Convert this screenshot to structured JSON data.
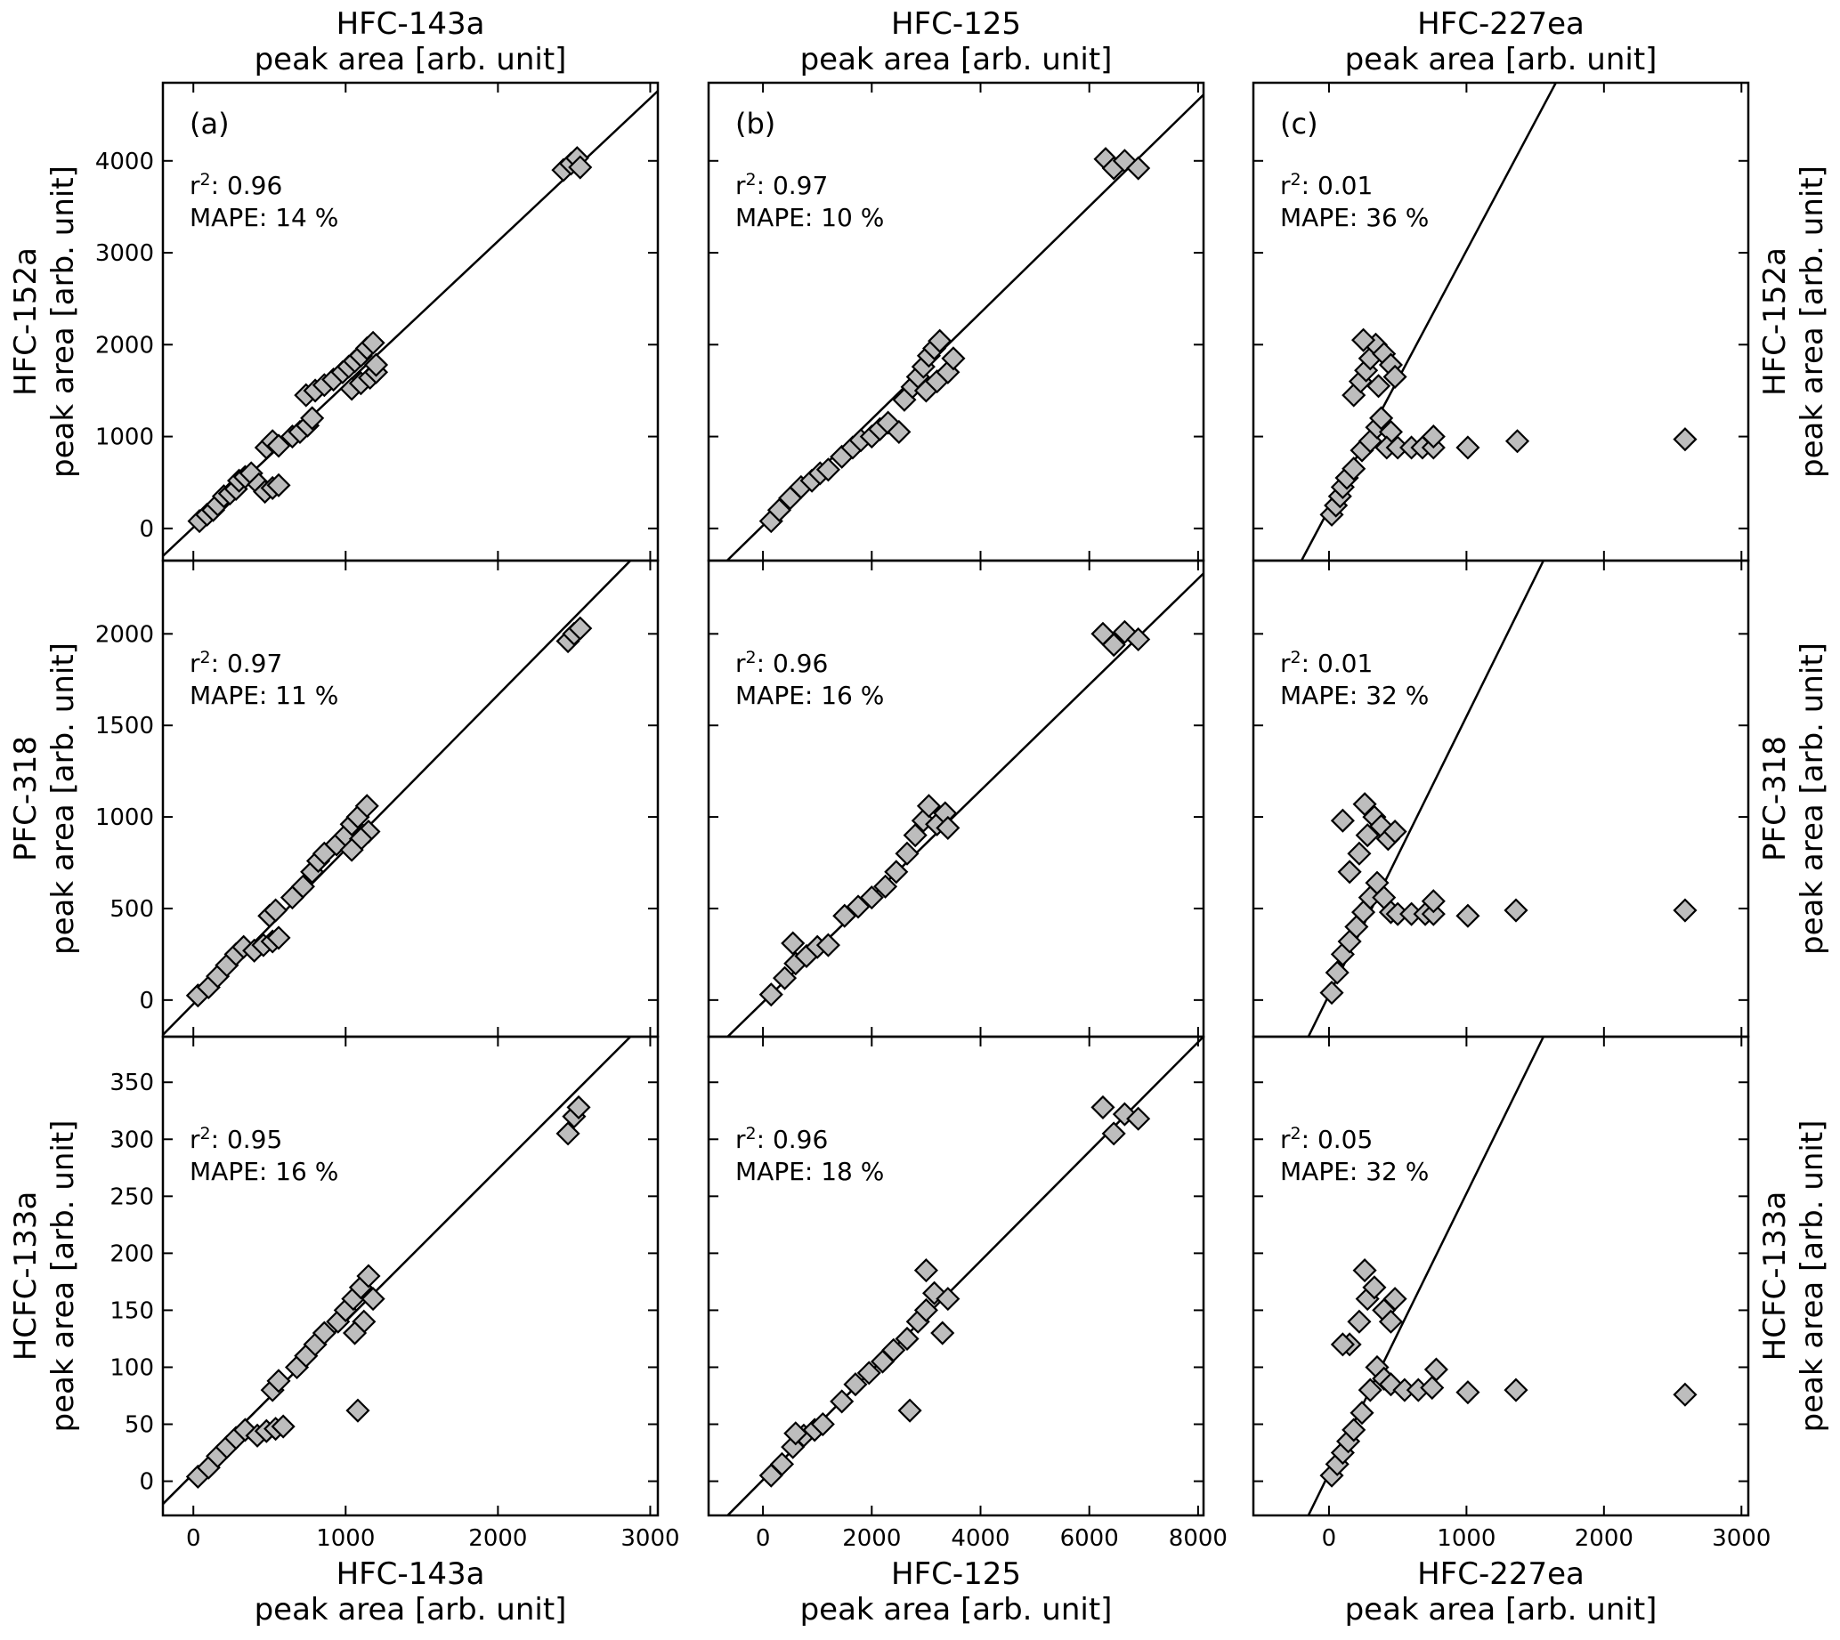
{
  "figure": {
    "top_titles": [
      {
        "line1": "HFC-143a",
        "line2": "peak area [arb. unit]"
      },
      {
        "line1": "HFC-125",
        "line2": "peak area [arb. unit]"
      },
      {
        "line1": "HFC-227ea",
        "line2": "peak area [arb. unit]"
      }
    ],
    "bottom_titles": [
      {
        "line1": "HFC-143a",
        "line2": "peak area [arb. unit]"
      },
      {
        "line1": "HFC-125",
        "line2": "peak area [arb. unit]"
      },
      {
        "line1": "HFC-227ea",
        "line2": "peak area [arb. unit]"
      }
    ],
    "row_titles": [
      {
        "line1": "HFC-152a",
        "line2": "peak area [arb. unit]"
      },
      {
        "line1": "PFC-318",
        "line2": "peak area [arb. unit]"
      },
      {
        "line1": "HCFC-133a",
        "line2": "peak area [arb. unit]"
      }
    ],
    "panel_letters": [
      "(a)",
      "(b)",
      "(c)"
    ],
    "marker_color": "#bdbdbd"
  },
  "chart_data": [
    {
      "type": "scatter",
      "row": 0,
      "col": 0,
      "r2": "0.96",
      "mape": "14",
      "xlim": [
        -200,
        3050
      ],
      "ylim": [
        -350,
        4850
      ],
      "fit": [
        [
          -200,
          -300
        ],
        [
          3050,
          4760
        ]
      ],
      "points": [
        [
          40,
          80
        ],
        [
          90,
          150
        ],
        [
          130,
          200
        ],
        [
          160,
          260
        ],
        [
          200,
          350
        ],
        [
          240,
          380
        ],
        [
          280,
          430
        ],
        [
          300,
          520
        ],
        [
          340,
          560
        ],
        [
          380,
          600
        ],
        [
          430,
          480
        ],
        [
          470,
          400
        ],
        [
          520,
          440
        ],
        [
          560,
          470
        ],
        [
          480,
          880
        ],
        [
          520,
          950
        ],
        [
          560,
          900
        ],
        [
          650,
          1000
        ],
        [
          700,
          1050
        ],
        [
          750,
          1120
        ],
        [
          780,
          1200
        ],
        [
          740,
          1450
        ],
        [
          800,
          1500
        ],
        [
          860,
          1560
        ],
        [
          920,
          1620
        ],
        [
          980,
          1700
        ],
        [
          1020,
          1760
        ],
        [
          1060,
          1820
        ],
        [
          1100,
          1880
        ],
        [
          1140,
          1960
        ],
        [
          1180,
          2020
        ],
        [
          1040,
          1520
        ],
        [
          1100,
          1580
        ],
        [
          1160,
          1640
        ],
        [
          1200,
          1700
        ],
        [
          1200,
          1780
        ],
        [
          2430,
          3900
        ],
        [
          2480,
          3970
        ],
        [
          2520,
          4030
        ],
        [
          2540,
          3930
        ]
      ]
    },
    {
      "type": "scatter",
      "row": 0,
      "col": 1,
      "r2": "0.97",
      "mape": "10",
      "xlim": [
        -1000,
        8100
      ],
      "ylim": [
        -350,
        4850
      ],
      "fit": [
        [
          -850,
          -460
        ],
        [
          8100,
          4720
        ]
      ],
      "points": [
        [
          150,
          80
        ],
        [
          300,
          200
        ],
        [
          500,
          330
        ],
        [
          700,
          450
        ],
        [
          900,
          520
        ],
        [
          1050,
          600
        ],
        [
          1200,
          640
        ],
        [
          1450,
          780
        ],
        [
          1650,
          880
        ],
        [
          1800,
          960
        ],
        [
          2000,
          1000
        ],
        [
          2150,
          1080
        ],
        [
          2300,
          1150
        ],
        [
          2500,
          1050
        ],
        [
          2600,
          1400
        ],
        [
          2750,
          1540
        ],
        [
          2850,
          1650
        ],
        [
          2950,
          1760
        ],
        [
          3050,
          1880
        ],
        [
          3150,
          1960
        ],
        [
          3250,
          2040
        ],
        [
          3000,
          1500
        ],
        [
          3200,
          1600
        ],
        [
          3400,
          1700
        ],
        [
          3500,
          1850
        ],
        [
          6300,
          4020
        ],
        [
          6450,
          3920
        ],
        [
          6650,
          4000
        ],
        [
          6900,
          3920
        ]
      ]
    },
    {
      "type": "scatter",
      "row": 0,
      "col": 2,
      "r2": "0.01",
      "mape": "36",
      "xlim": [
        -550,
        3050
      ],
      "ylim": [
        -350,
        4850
      ],
      "fit": [
        [
          -200,
          -350
        ],
        [
          1650,
          4850
        ]
      ],
      "points": [
        [
          20,
          150
        ],
        [
          50,
          250
        ],
        [
          80,
          350
        ],
        [
          100,
          450
        ],
        [
          130,
          550
        ],
        [
          180,
          650
        ],
        [
          240,
          850
        ],
        [
          300,
          950
        ],
        [
          350,
          1100
        ],
        [
          380,
          1200
        ],
        [
          450,
          1050
        ],
        [
          420,
          880
        ],
        [
          500,
          880
        ],
        [
          600,
          880
        ],
        [
          680,
          880
        ],
        [
          760,
          880
        ],
        [
          760,
          1000
        ],
        [
          1010,
          880
        ],
        [
          1370,
          950
        ],
        [
          2590,
          970
        ],
        [
          180,
          1450
        ],
        [
          230,
          1600
        ],
        [
          270,
          1720
        ],
        [
          300,
          1850
        ],
        [
          340,
          2000
        ],
        [
          400,
          1900
        ],
        [
          450,
          1780
        ],
        [
          480,
          1650
        ],
        [
          360,
          1550
        ],
        [
          250,
          2050
        ]
      ]
    },
    {
      "type": "scatter",
      "row": 1,
      "col": 0,
      "r2": "0.97",
      "mape": "11",
      "xlim": [
        -200,
        3050
      ],
      "ylim": [
        -200,
        2400
      ],
      "fit": [
        [
          -200,
          -190
        ],
        [
          2870,
          2400
        ]
      ],
      "points": [
        [
          30,
          25
        ],
        [
          100,
          70
        ],
        [
          160,
          130
        ],
        [
          220,
          190
        ],
        [
          280,
          250
        ],
        [
          330,
          290
        ],
        [
          400,
          270
        ],
        [
          460,
          300
        ],
        [
          520,
          320
        ],
        [
          560,
          340
        ],
        [
          500,
          460
        ],
        [
          540,
          490
        ],
        [
          650,
          560
        ],
        [
          720,
          620
        ],
        [
          780,
          700
        ],
        [
          820,
          760
        ],
        [
          860,
          800
        ],
        [
          940,
          850
        ],
        [
          1000,
          900
        ],
        [
          1040,
          960
        ],
        [
          1080,
          1000
        ],
        [
          1140,
          1060
        ],
        [
          1150,
          920
        ],
        [
          1100,
          880
        ],
        [
          1040,
          820
        ],
        [
          2460,
          1960
        ],
        [
          2500,
          2000
        ],
        [
          2540,
          2030
        ]
      ]
    },
    {
      "type": "scatter",
      "row": 1,
      "col": 1,
      "r2": "0.96",
      "mape": "16",
      "xlim": [
        -1000,
        8100
      ],
      "ylim": [
        -200,
        2400
      ],
      "fit": [
        [
          -650,
          -200
        ],
        [
          8100,
          2330
        ]
      ],
      "points": [
        [
          150,
          30
        ],
        [
          400,
          120
        ],
        [
          600,
          200
        ],
        [
          800,
          240
        ],
        [
          1000,
          290
        ],
        [
          1200,
          300
        ],
        [
          550,
          310
        ],
        [
          1500,
          460
        ],
        [
          1750,
          510
        ],
        [
          2000,
          560
        ],
        [
          2250,
          620
        ],
        [
          2450,
          700
        ],
        [
          2650,
          800
        ],
        [
          2800,
          900
        ],
        [
          2950,
          980
        ],
        [
          3050,
          1060
        ],
        [
          3200,
          960
        ],
        [
          3350,
          1020
        ],
        [
          3400,
          940
        ],
        [
          6250,
          2000
        ],
        [
          6450,
          1940
        ],
        [
          6650,
          2010
        ],
        [
          6900,
          1970
        ]
      ]
    },
    {
      "type": "scatter",
      "row": 1,
      "col": 2,
      "r2": "0.01",
      "mape": "32",
      "xlim": [
        -550,
        3050
      ],
      "ylim": [
        -200,
        2400
      ],
      "fit": [
        [
          -150,
          -200
        ],
        [
          1560,
          2400
        ]
      ],
      "points": [
        [
          20,
          40
        ],
        [
          60,
          150
        ],
        [
          100,
          250
        ],
        [
          150,
          320
        ],
        [
          200,
          400
        ],
        [
          250,
          480
        ],
        [
          300,
          560
        ],
        [
          350,
          640
        ],
        [
          400,
          560
        ],
        [
          450,
          480
        ],
        [
          500,
          470
        ],
        [
          600,
          470
        ],
        [
          700,
          470
        ],
        [
          760,
          470
        ],
        [
          760,
          540
        ],
        [
          1010,
          460
        ],
        [
          1360,
          490
        ],
        [
          2590,
          490
        ],
        [
          150,
          700
        ],
        [
          220,
          800
        ],
        [
          280,
          900
        ],
        [
          330,
          1000
        ],
        [
          380,
          950
        ],
        [
          430,
          880
        ],
        [
          480,
          920
        ],
        [
          260,
          1070
        ],
        [
          100,
          980
        ]
      ]
    },
    {
      "type": "scatter",
      "row": 2,
      "col": 0,
      "r2": "0.95",
      "mape": "16",
      "xlim": [
        -200,
        3050
      ],
      "ylim": [
        -30,
        390
      ],
      "fit": [
        [
          -200,
          -20
        ],
        [
          2870,
          390
        ]
      ],
      "points": [
        [
          30,
          4
        ],
        [
          100,
          12
        ],
        [
          160,
          22
        ],
        [
          220,
          30
        ],
        [
          280,
          38
        ],
        [
          340,
          45
        ],
        [
          420,
          40
        ],
        [
          480,
          44
        ],
        [
          540,
          46
        ],
        [
          590,
          48
        ],
        [
          520,
          80
        ],
        [
          560,
          88
        ],
        [
          680,
          100
        ],
        [
          740,
          110
        ],
        [
          800,
          120
        ],
        [
          860,
          130
        ],
        [
          950,
          140
        ],
        [
          1000,
          150
        ],
        [
          1050,
          160
        ],
        [
          1100,
          170
        ],
        [
          1150,
          180
        ],
        [
          1180,
          160
        ],
        [
          1120,
          140
        ],
        [
          1060,
          130
        ],
        [
          1080,
          62
        ],
        [
          2460,
          305
        ],
        [
          2500,
          320
        ],
        [
          2530,
          328
        ]
      ]
    },
    {
      "type": "scatter",
      "row": 2,
      "col": 1,
      "r2": "0.96",
      "mape": "18",
      "xlim": [
        -1000,
        8100
      ],
      "ylim": [
        -30,
        390
      ],
      "fit": [
        [
          -650,
          -30
        ],
        [
          8100,
          390
        ]
      ],
      "points": [
        [
          150,
          5
        ],
        [
          350,
          15
        ],
        [
          550,
          30
        ],
        [
          750,
          40
        ],
        [
          950,
          45
        ],
        [
          1100,
          50
        ],
        [
          600,
          42
        ],
        [
          1450,
          70
        ],
        [
          1700,
          85
        ],
        [
          1950,
          95
        ],
        [
          2200,
          105
        ],
        [
          2400,
          115
        ],
        [
          2650,
          125
        ],
        [
          2850,
          140
        ],
        [
          3000,
          150
        ],
        [
          3150,
          165
        ],
        [
          3000,
          185
        ],
        [
          3300,
          130
        ],
        [
          3400,
          160
        ],
        [
          2700,
          62
        ],
        [
          6250,
          328
        ],
        [
          6450,
          305
        ],
        [
          6650,
          322
        ],
        [
          6900,
          318
        ]
      ]
    },
    {
      "type": "scatter",
      "row": 2,
      "col": 2,
      "r2": "0.05",
      "mape": "32",
      "xlim": [
        -550,
        3050
      ],
      "ylim": [
        -30,
        390
      ],
      "fit": [
        [
          -150,
          -30
        ],
        [
          1560,
          390
        ]
      ],
      "points": [
        [
          20,
          5
        ],
        [
          60,
          15
        ],
        [
          100,
          25
        ],
        [
          140,
          35
        ],
        [
          180,
          45
        ],
        [
          240,
          60
        ],
        [
          300,
          80
        ],
        [
          350,
          100
        ],
        [
          400,
          90
        ],
        [
          450,
          85
        ],
        [
          550,
          80
        ],
        [
          650,
          80
        ],
        [
          750,
          82
        ],
        [
          780,
          98
        ],
        [
          1010,
          78
        ],
        [
          1360,
          80
        ],
        [
          2590,
          76
        ],
        [
          150,
          120
        ],
        [
          220,
          140
        ],
        [
          280,
          160
        ],
        [
          330,
          170
        ],
        [
          400,
          150
        ],
        [
          450,
          140
        ],
        [
          480,
          160
        ],
        [
          260,
          185
        ],
        [
          100,
          120
        ]
      ]
    }
  ]
}
